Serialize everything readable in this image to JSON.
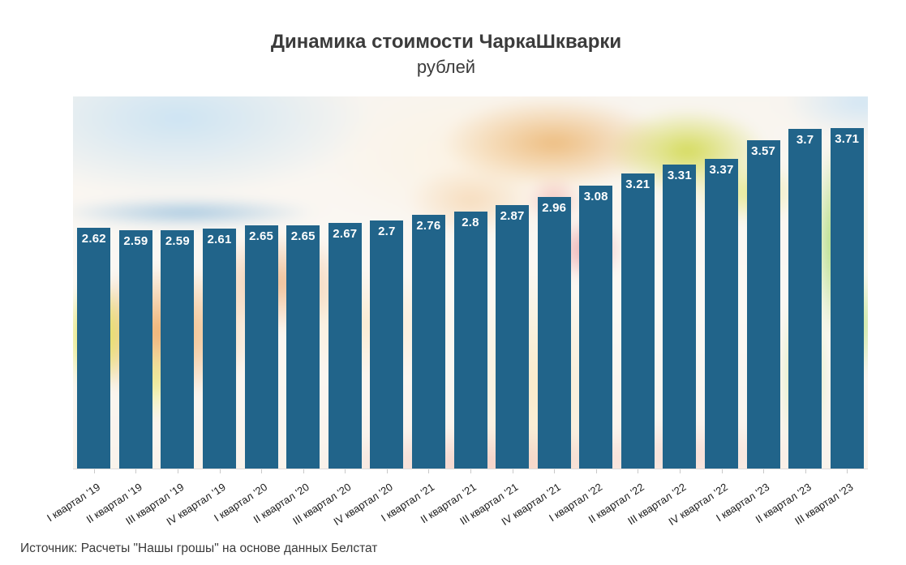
{
  "header": {
    "title": "Динамика стоимости ЧаркаШкварки",
    "subtitle": "рублей"
  },
  "footer": {
    "source": "Источник: Расчеты \"Нашы грошы\" на основе данных Белстат"
  },
  "chart_data": {
    "type": "bar",
    "title": "Динамика стоимости ЧаркаШкварки",
    "subtitle": "рублей",
    "xlabel": "",
    "ylabel": "рублей",
    "categories": [
      "I квартал '19",
      "II квартал '19",
      "III квартал '19",
      "IV квартал '19",
      "I квартал '20",
      "II квартал '20",
      "III квартал '20",
      "IV квартал '20",
      "I квартал '21",
      "II квартал '21",
      "III квартал '21",
      "IV квартал '21",
      "I квартал '22",
      "II квартал '22",
      "III квартал '22",
      "IV квартал '22",
      "I квартал '23",
      "II квартал '23",
      "III квартал '23"
    ],
    "values": [
      2.62,
      2.59,
      2.59,
      2.61,
      2.65,
      2.65,
      2.67,
      2.7,
      2.76,
      2.8,
      2.87,
      2.96,
      3.08,
      3.21,
      3.31,
      3.37,
      3.57,
      3.7,
      3.71
    ],
    "value_labels": [
      "2.62",
      "2.59",
      "2.59",
      "2.61",
      "2.65",
      "2.65",
      "2.67",
      "2.7",
      "2.76",
      "2.8",
      "2.87",
      "2.96",
      "3.08",
      "3.21",
      "3.31",
      "3.37",
      "3.57",
      "3.7",
      "3.71"
    ],
    "ylim": [
      0,
      4.05
    ],
    "grid": false,
    "legend": "none",
    "bar_color": "#21648A",
    "value_label_color": "#FFFFFF",
    "source": "Источник: Расчеты \"Нашы грошы\" на основе данных Белстат"
  }
}
